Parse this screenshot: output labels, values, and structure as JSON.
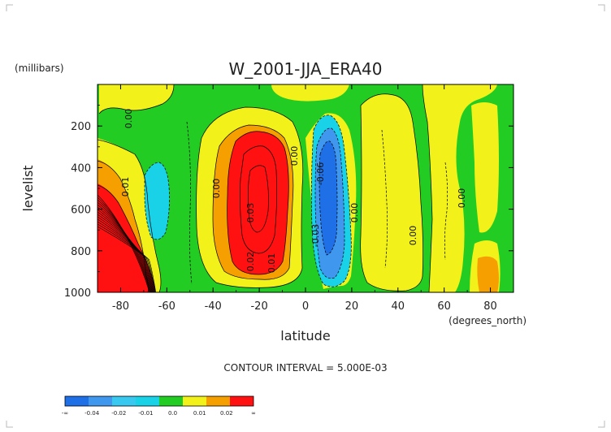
{
  "chart_data": {
    "type": "heatmap",
    "title": "W_2001-JJA_ERA40",
    "xlabel": "latitude",
    "ylabel": "levelist",
    "x_units": "(degrees_north)",
    "y_units": "(millibars)",
    "xlim": [
      -90,
      90
    ],
    "ylim": [
      1000,
      0
    ],
    "x_ticks": [
      "-80",
      "-60",
      "-40",
      "-20",
      "0",
      "20",
      "40",
      "60",
      "80"
    ],
    "x_tick_values": [
      -80,
      -60,
      -40,
      -20,
      0,
      20,
      40,
      60,
      80
    ],
    "y_ticks": [
      "200",
      "400",
      "600",
      "800",
      "1000"
    ],
    "y_tick_values": [
      200,
      400,
      600,
      800,
      1000
    ],
    "contour_interval_text": "CONTOUR INTERVAL = 5.000E-03",
    "colorbar": {
      "colors": [
        "#1f6fe6",
        "#3f97ee",
        "#38c8f0",
        "#19d2e8",
        "#22cc22",
        "#f2f21a",
        "#f5a000",
        "#ff1111"
      ],
      "labels": [
        "-∞",
        "-0.04",
        "-0.02",
        "-0.01",
        "0.0",
        "0.01",
        "0.02",
        "∞"
      ]
    },
    "levels": [
      -0.04,
      -0.02,
      -0.01,
      0.0,
      0.01,
      0.02
    ],
    "features": [
      {
        "lat": -20,
        "lev": 560,
        "value": 0.035,
        "sign": "positive"
      },
      {
        "lat": -85,
        "lev": 820,
        "value": 0.06,
        "sign": "positive"
      },
      {
        "lat": 10,
        "lev": 520,
        "value": -0.06,
        "sign": "negative"
      },
      {
        "lat": -65,
        "lev": 600,
        "value": -0.012,
        "sign": "negative"
      }
    ],
    "contour_labels": [
      "0.00",
      "0.01",
      "0.00",
      "0.03",
      "0.02",
      "0.01",
      "0.00",
      "-0.06",
      "-0.03",
      "0.00",
      "0.00",
      "0.00"
    ]
  }
}
